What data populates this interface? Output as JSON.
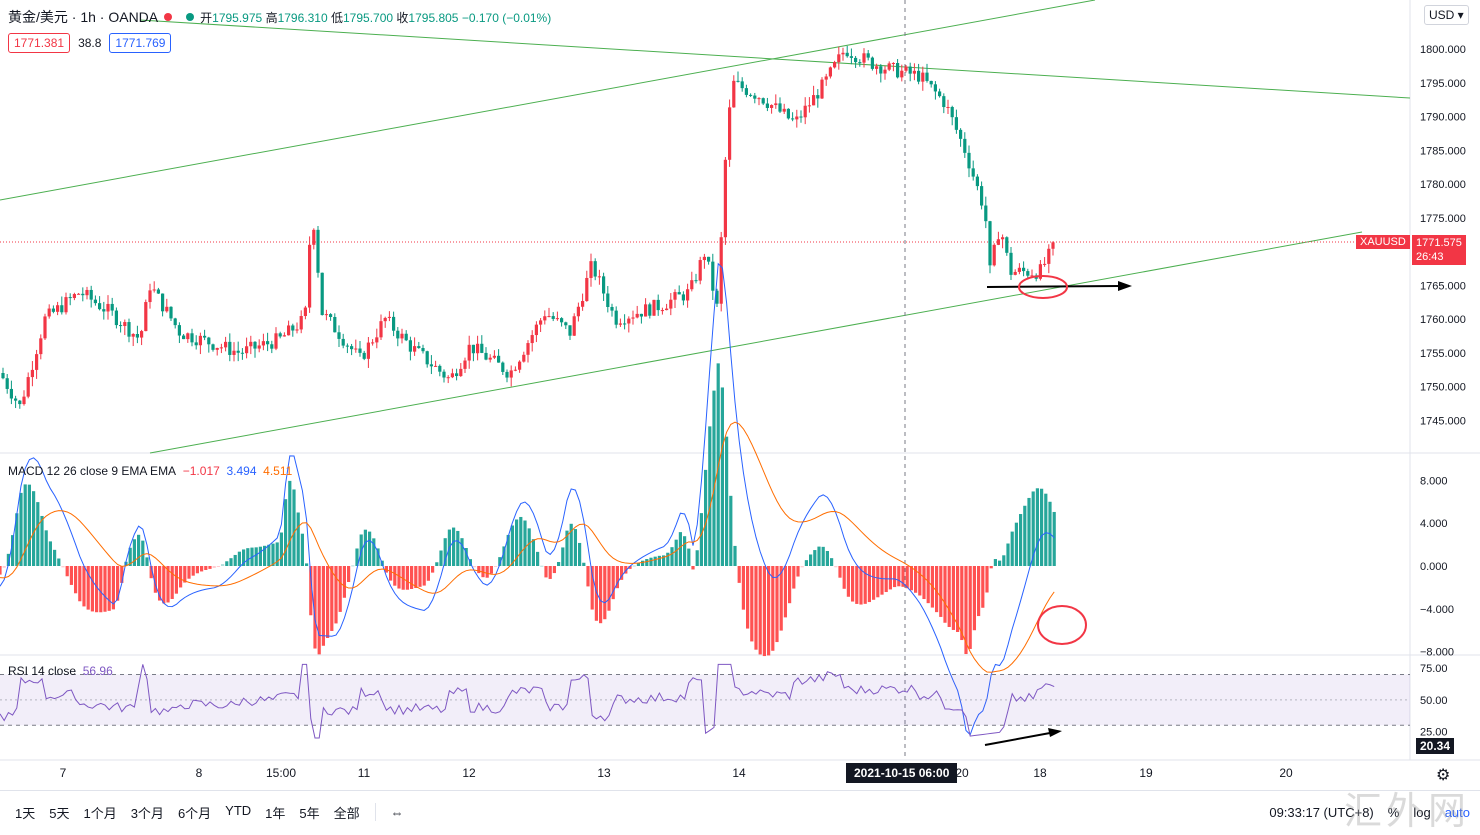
{
  "header": {
    "symbol": "黄金/美元 · 1h · OANDA",
    "open_label": "开",
    "open": "1795.975",
    "high_label": "高",
    "high": "1796.310",
    "low_label": "低",
    "low": "1795.700",
    "close_label": "收",
    "close": "1795.805",
    "change": "−0.170 (−0.01%)",
    "sell_price": "1771.381",
    "spread": "38.8",
    "buy_price": "1771.769",
    "currency": "USD"
  },
  "price_tag": {
    "symbol": "XAUUSD",
    "price": "1771.575",
    "countdown": "26:43"
  },
  "crosshair_date": "2021-10-15   06:00",
  "macd_label": {
    "name": "MACD 12 26 close 9 EMA EMA",
    "hist": "−1.017",
    "macd": "3.494",
    "signal": "4.511"
  },
  "rsi_label": {
    "name": "RSI 14 close",
    "value": "56.96"
  },
  "rsi_tag": "20.34",
  "toolbar": {
    "ranges": [
      "1天",
      "5天",
      "1个月",
      "3个月",
      "6个月",
      "YTD",
      "1年",
      "5年",
      "全部"
    ],
    "time": "09:33:17 (UTC+8)",
    "percent": "%",
    "log": "log",
    "auto": "auto"
  },
  "watermark": "汇外网",
  "colors": {
    "up": "#f23645",
    "down": "#089981",
    "macd": "#2962ff",
    "signal": "#ff6d00",
    "rsi": "#7e57c2",
    "trend": "#4caf50"
  },
  "chart_data": [
    {
      "type": "candlestick",
      "title": "黄金/美元 · 1h · OANDA",
      "x_ticks": [
        "7",
        "8",
        "15:00",
        "11",
        "12",
        "13",
        "14",
        "20",
        "18",
        "19",
        "20"
      ],
      "y_ticks": [
        1745,
        1750,
        1755,
        1760,
        1765,
        1770,
        1775,
        1780,
        1785,
        1790,
        1795,
        1800
      ],
      "ylim": [
        1742,
        1806
      ],
      "close_path": [
        {
          "x": 0,
          "y": 1752
        },
        {
          "x": 20,
          "y": 1747
        },
        {
          "x": 45,
          "y": 1760
        },
        {
          "x": 80,
          "y": 1764
        },
        {
          "x": 110,
          "y": 1761
        },
        {
          "x": 140,
          "y": 1757
        },
        {
          "x": 150,
          "y": 1765
        },
        {
          "x": 180,
          "y": 1758
        },
        {
          "x": 240,
          "y": 1755
        },
        {
          "x": 280,
          "y": 1757
        },
        {
          "x": 305,
          "y": 1760
        },
        {
          "x": 312,
          "y": 1777
        },
        {
          "x": 322,
          "y": 1761
        },
        {
          "x": 360,
          "y": 1754
        },
        {
          "x": 385,
          "y": 1760
        },
        {
          "x": 410,
          "y": 1756
        },
        {
          "x": 450,
          "y": 1751
        },
        {
          "x": 470,
          "y": 1756
        },
        {
          "x": 510,
          "y": 1752
        },
        {
          "x": 545,
          "y": 1761
        },
        {
          "x": 570,
          "y": 1758
        },
        {
          "x": 592,
          "y": 1768
        },
        {
          "x": 615,
          "y": 1760
        },
        {
          "x": 660,
          "y": 1762
        },
        {
          "x": 690,
          "y": 1764
        },
        {
          "x": 705,
          "y": 1770
        },
        {
          "x": 718,
          "y": 1761
        },
        {
          "x": 724,
          "y": 1781
        },
        {
          "x": 732,
          "y": 1795
        },
        {
          "x": 760,
          "y": 1793
        },
        {
          "x": 795,
          "y": 1789
        },
        {
          "x": 825,
          "y": 1795
        },
        {
          "x": 845,
          "y": 1800
        },
        {
          "x": 870,
          "y": 1798
        },
        {
          "x": 890,
          "y": 1797
        },
        {
          "x": 920,
          "y": 1796
        },
        {
          "x": 945,
          "y": 1792
        },
        {
          "x": 965,
          "y": 1785
        },
        {
          "x": 985,
          "y": 1776
        },
        {
          "x": 990,
          "y": 1767
        },
        {
          "x": 1000,
          "y": 1774
        },
        {
          "x": 1010,
          "y": 1767
        },
        {
          "x": 1040,
          "y": 1767
        },
        {
          "x": 1057,
          "y": 1771.5
        }
      ]
    },
    {
      "type": "line",
      "title": "MACD 12 26 close 9 EMA EMA",
      "y_ticks": [
        "8.000",
        "4.000",
        "0.000",
        "−4.000",
        "−8.000"
      ],
      "ylim": [
        -9,
        9
      ]
    },
    {
      "type": "line",
      "title": "RSI 14 close",
      "y_ticks": [
        "75.00",
        "50.00",
        "25.00"
      ],
      "band": [
        30,
        70
      ]
    }
  ]
}
